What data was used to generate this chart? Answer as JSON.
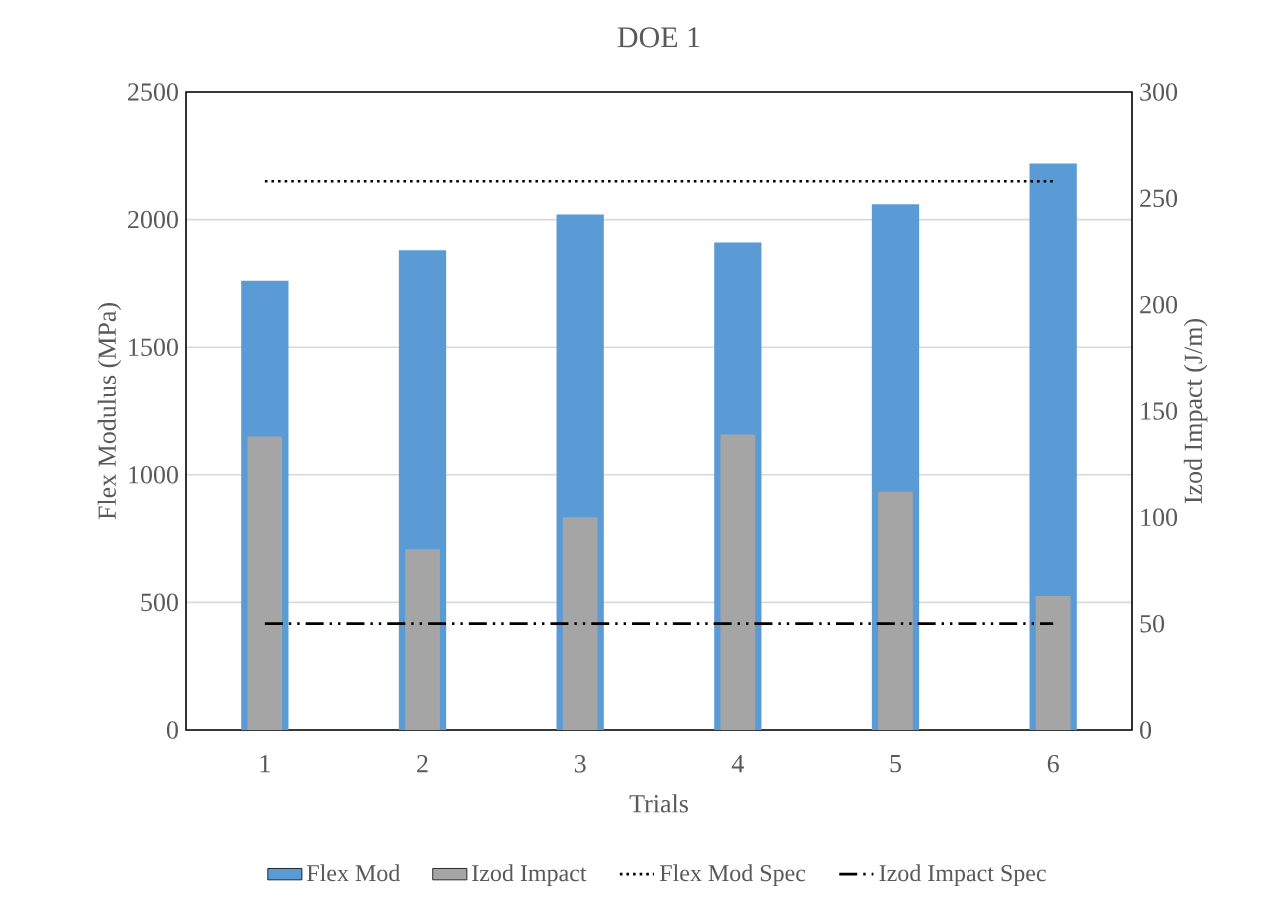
{
  "chart_data": {
    "type": "bar",
    "title": "DOE 1",
    "xlabel": "Trials",
    "ylabel": "Flex Modulus (MPa)",
    "y2label": "Izod Impact (J/m)",
    "categories": [
      "1",
      "2",
      "3",
      "4",
      "5",
      "6"
    ],
    "series": [
      {
        "name": "Flex Mod",
        "color": "#5b9bd5",
        "values": [
          1760,
          1880,
          2020,
          1910,
          2060,
          2220
        ]
      },
      {
        "name": "Izod Impact",
        "color": "#a5a5a5",
        "axis": "y2",
        "values": [
          138,
          85,
          100,
          139,
          112,
          63
        ]
      },
      {
        "name": "Flex Mod Spec",
        "type": "line",
        "color": "#000000",
        "line_style": "dotted",
        "values": [
          2150,
          2150,
          2150,
          2150,
          2150,
          2150
        ]
      },
      {
        "name": "Izod Impact Spec",
        "type": "line",
        "color": "#000000",
        "axis": "y2",
        "line_style": "dashdot",
        "values": [
          50,
          50,
          50,
          50,
          50,
          50
        ]
      }
    ],
    "ylim": [
      0,
      2500
    ],
    "yticks": [
      0,
      500,
      1000,
      1500,
      2000,
      2500
    ],
    "y2lim": [
      0,
      300
    ],
    "y2ticks": [
      0,
      50,
      100,
      150,
      200,
      250,
      300
    ],
    "grid": "y",
    "legend": "bottom"
  }
}
